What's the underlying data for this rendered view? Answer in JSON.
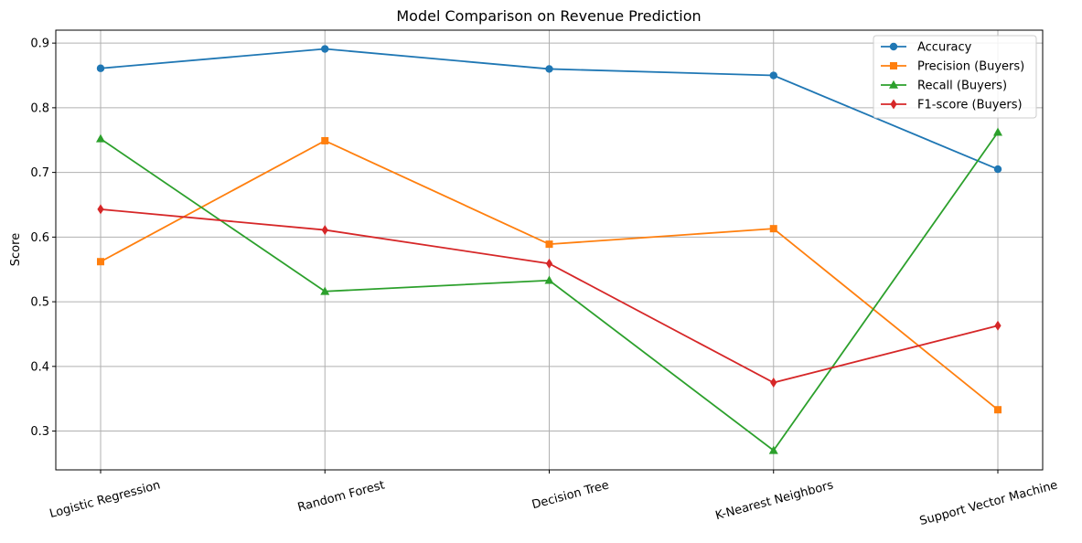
{
  "chart_data": {
    "type": "line",
    "title": "Model Comparison on Revenue Prediction",
    "xlabel": "",
    "ylabel": "Score",
    "categories": [
      "Logistic Regression",
      "Random Forest",
      "Decision Tree",
      "K-Nearest Neighbors",
      "Support Vector Machine"
    ],
    "ylim": [
      0.24,
      0.92
    ],
    "yticks": [
      0.3,
      0.4,
      0.5,
      0.6,
      0.7,
      0.8,
      0.9
    ],
    "ytick_labels": [
      "0.3",
      "0.4",
      "0.5",
      "0.6",
      "0.7",
      "0.8",
      "0.9"
    ],
    "grid": true,
    "legend_position": "top-right",
    "series": [
      {
        "name": "Accuracy",
        "color": "#1f77b4",
        "marker": "circle",
        "values": [
          0.861,
          0.891,
          0.86,
          0.85,
          0.705
        ]
      },
      {
        "name": "Precision (Buyers)",
        "color": "#ff7f0e",
        "marker": "square",
        "values": [
          0.562,
          0.749,
          0.589,
          0.613,
          0.333
        ]
      },
      {
        "name": "Recall (Buyers)",
        "color": "#2ca02c",
        "marker": "triangle",
        "values": [
          0.752,
          0.516,
          0.533,
          0.27,
          0.762
        ]
      },
      {
        "name": "F1-score (Buyers)",
        "color": "#d62728",
        "marker": "diamond",
        "values": [
          0.643,
          0.611,
          0.559,
          0.375,
          0.463
        ]
      }
    ]
  }
}
